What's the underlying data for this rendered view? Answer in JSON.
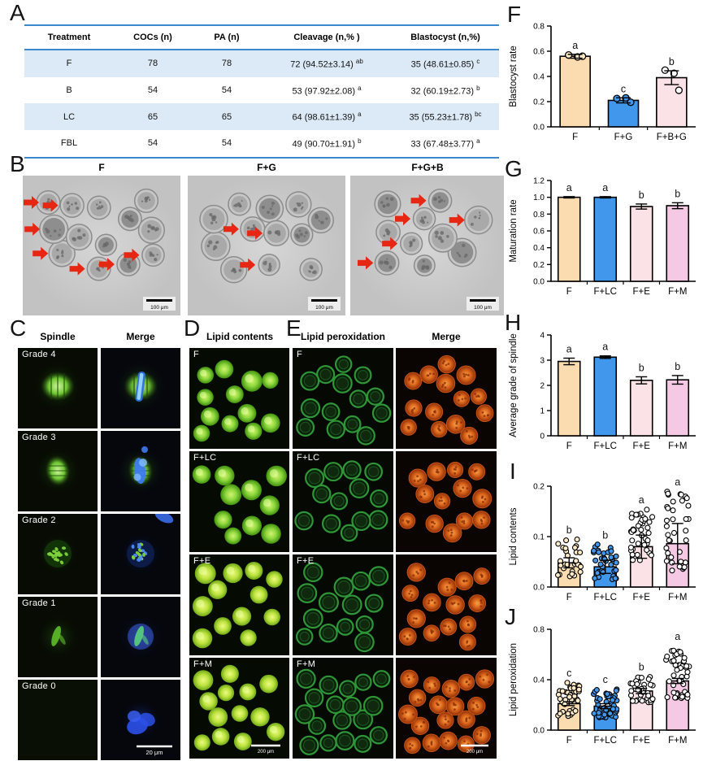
{
  "letters": [
    "A",
    "B",
    "C",
    "D",
    "E",
    "F",
    "G",
    "H",
    "I",
    "J"
  ],
  "colors": {
    "peach": "#FADCB0",
    "blue": "#4097EB",
    "lightpink": "#FBE2E6",
    "pink": "#F5C8E4",
    "point_peach": "#FDEBC8",
    "point_blue": "#4097EB",
    "point_light": "#FFFFFF",
    "table_stripe": "#DCEAF7",
    "table_line": "#3C88CC",
    "arrow_red": "#E52713",
    "axis_black": "#000000"
  },
  "table": {
    "headers": [
      "Treatment",
      "COCs (n)",
      "PA (n)",
      "Cleavage (n,% )",
      "Blastocyst (n,%)"
    ],
    "rows": [
      [
        "F",
        "78",
        "78",
        {
          "t": "72 (94.52±3.14)",
          "sup": "ab"
        },
        {
          "t": "35 (48.61±0.85)",
          "sup": "c"
        }
      ],
      [
        "B",
        "54",
        "54",
        {
          "t": "53 (97.92±2.08)",
          "sup": "a"
        },
        {
          "t": "32 (60.19±2.73)",
          "sup": "b"
        }
      ],
      [
        "LC",
        "65",
        "65",
        {
          "t": "64 (98.61±1.39)",
          "sup": "a"
        },
        {
          "t": "35 (55.23±1.78)",
          "sup": "bc"
        }
      ],
      [
        "FBL",
        "54",
        "54",
        {
          "t": "49 (90.70±1.91)",
          "sup": "b"
        },
        {
          "t": "33 (67.48±3.77)",
          "sup": "a"
        }
      ]
    ]
  },
  "panelB": {
    "titles": [
      "F",
      "F+G",
      "F+G+B"
    ],
    "scale_bar": "100 μm",
    "arrow_counts": [
      7,
      3,
      7
    ],
    "cell_counts": [
      13,
      14,
      15
    ]
  },
  "panelC": {
    "headers": [
      "Spindle",
      "Merge"
    ],
    "row_labels": [
      "Grade 4",
      "Grade 3",
      "Grade 2",
      "Grade 1",
      "Grade 0"
    ],
    "scale_bar": "20 μm"
  },
  "panelD": {
    "header": "Lipid contents",
    "row_labels": [
      "F",
      "F+LC",
      "F+E",
      "F+M"
    ],
    "cell_counts": [
      12,
      10,
      12,
      13
    ],
    "scale_bar": "200 μm"
  },
  "panelE": {
    "headers": [
      "Lipid peroxidation",
      "Merge"
    ],
    "row_labels": [
      "F",
      "F+LC",
      "F+E",
      "F+M"
    ],
    "cell_counts": [
      14,
      13,
      14,
      19
    ],
    "scale_bar": "200 μm"
  },
  "chart_data": [
    {
      "id": "F",
      "type": "bar",
      "ylabel": "Blastocyst rate",
      "ylim": [
        0,
        0.8
      ],
      "yticks": [
        0,
        0.2,
        0.4,
        0.6,
        0.8
      ],
      "ytick_labels": [
        "0.0",
        "0.2",
        "0.4",
        "0.6",
        "0.8"
      ],
      "categories": [
        "F",
        "F+G",
        "F+B+G"
      ],
      "values": [
        0.56,
        0.21,
        0.39
      ],
      "errors": [
        0.015,
        0.02,
        0.055
      ],
      "sig_letters": [
        "a",
        "c",
        "b"
      ],
      "bar_colors": [
        "peach",
        "blue",
        "lightpink"
      ],
      "point_colors": [
        "point_peach",
        "point_blue",
        "point_light"
      ],
      "points": [
        [
          0.57,
          0.555,
          0.56
        ],
        [
          0.225,
          0.23,
          0.195
        ],
        [
          0.45,
          0.425,
          0.29
        ]
      ],
      "grid": false,
      "legend": false
    },
    {
      "id": "G",
      "type": "bar",
      "ylabel": "Maturation rate",
      "ylim": [
        0,
        1.2
      ],
      "yticks": [
        0,
        0.2,
        0.4,
        0.6,
        0.8,
        1.0,
        1.2
      ],
      "ytick_labels": [
        "0.0",
        "0.2",
        "0.4",
        "0.6",
        "0.8",
        "1.0",
        "1.2"
      ],
      "categories": [
        "F",
        "F+LC",
        "F+E",
        "F+M"
      ],
      "values": [
        1.0,
        1.0,
        0.89,
        0.9
      ],
      "errors": [
        0.008,
        0.008,
        0.03,
        0.035
      ],
      "sig_letters": [
        "a",
        "a",
        "b",
        "b"
      ],
      "bar_colors": [
        "peach",
        "blue",
        "lightpink",
        "pink"
      ],
      "grid": false,
      "legend": false
    },
    {
      "id": "H",
      "type": "bar",
      "ylabel": "Average grade of spindle",
      "ylim": [
        0,
        4
      ],
      "yticks": [
        0,
        1,
        2,
        3,
        4
      ],
      "ytick_labels": [
        "0",
        "1",
        "2",
        "3",
        "4"
      ],
      "categories": [
        "F",
        "F+LC",
        "F+E",
        "F+M"
      ],
      "values": [
        2.95,
        3.12,
        2.2,
        2.22
      ],
      "errors": [
        0.13,
        0.05,
        0.14,
        0.17
      ],
      "sig_letters": [
        "a",
        "a",
        "b",
        "b"
      ],
      "bar_colors": [
        "peach",
        "blue",
        "lightpink",
        "pink"
      ],
      "grid": false,
      "legend": false
    },
    {
      "id": "I",
      "type": "bar",
      "ylabel": "Lipid contents",
      "ylim": [
        0,
        0.2
      ],
      "yticks": [
        0,
        0.1,
        0.2
      ],
      "ytick_labels": [
        "0.0",
        "0.1",
        "0.2"
      ],
      "categories": [
        "F",
        "F+LC",
        "F+E",
        "F+M"
      ],
      "values": [
        0.048,
        0.04,
        0.08,
        0.086
      ],
      "errors": [
        0.01,
        0.013,
        0.023,
        0.04
      ],
      "sig_letters": [
        "b",
        "b",
        "a",
        "a"
      ],
      "bar_colors": [
        "peach",
        "blue",
        "lightpink",
        "pink"
      ],
      "point_colors": [
        "point_peach",
        "point_blue",
        "point_light",
        "point_light"
      ],
      "scatter": {
        "n": [
          30,
          36,
          40,
          38
        ],
        "min": [
          0.02,
          0.015,
          0.05,
          0.03
        ],
        "max": [
          0.095,
          0.085,
          0.155,
          0.19
        ]
      },
      "grid": false,
      "legend": false
    },
    {
      "id": "J",
      "type": "bar",
      "ylabel": "Lipid peroxidation",
      "ylim": [
        0,
        0.8
      ],
      "yticks": [
        0,
        0.4,
        0.8
      ],
      "ytick_labels": [
        "0.0",
        "0.4",
        "0.8"
      ],
      "categories": [
        "F",
        "F+LC",
        "F+E",
        "F+M"
      ],
      "values": [
        0.21,
        0.19,
        0.31,
        0.39
      ],
      "errors": [
        0.015,
        0.02,
        0.02,
        0.02
      ],
      "sig_letters": [
        "c",
        "c",
        "b",
        "a"
      ],
      "bar_colors": [
        "peach",
        "blue",
        "lightpink",
        "pink"
      ],
      "point_colors": [
        "point_peach",
        "point_blue",
        "point_light",
        "point_light"
      ],
      "scatter": {
        "n": [
          40,
          48,
          36,
          50
        ],
        "min": [
          0.11,
          0.1,
          0.22,
          0.25
        ],
        "max": [
          0.38,
          0.33,
          0.43,
          0.67
        ]
      },
      "grid": false,
      "legend": false
    }
  ]
}
